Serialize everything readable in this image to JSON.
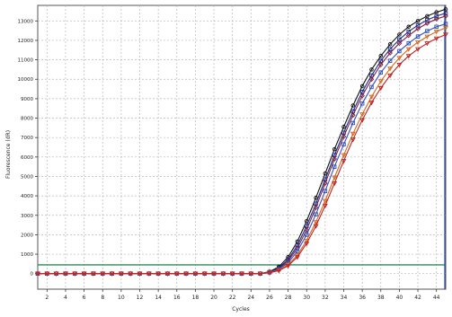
{
  "chart_data": {
    "type": "line",
    "title": "",
    "xlabel": "Cycles",
    "ylabel": "Fluorescence (dR)",
    "xlim": [
      1,
      45
    ],
    "ylim": [
      -800,
      13800
    ],
    "x_ticks": [
      2,
      4,
      6,
      8,
      10,
      12,
      14,
      16,
      18,
      20,
      22,
      24,
      26,
      28,
      30,
      32,
      34,
      36,
      38,
      40,
      42,
      44
    ],
    "y_ticks": [
      0,
      1000,
      2000,
      3000,
      4000,
      5000,
      6000,
      7000,
      8000,
      9000,
      10000,
      11000,
      12000,
      13000
    ],
    "grid": true,
    "threshold": {
      "value": 450,
      "color": "#2e8b57"
    },
    "series": [
      {
        "color": "#101010",
        "marker": "circle",
        "values": [
          0,
          0,
          0,
          0,
          0,
          0,
          0,
          0,
          0,
          0,
          0,
          0,
          0,
          0,
          0,
          0,
          0,
          0,
          0,
          0,
          0,
          0,
          0,
          0,
          0,
          100,
          350,
          850,
          1650,
          2700,
          3900,
          5150,
          6400,
          7550,
          8650,
          9650,
          10500,
          11200,
          11800,
          12300,
          12700,
          13000,
          13250,
          13450,
          13600
        ]
      },
      {
        "color": "#1a2a8a",
        "marker": "square",
        "values": [
          0,
          0,
          0,
          0,
          0,
          0,
          0,
          0,
          0,
          0,
          0,
          0,
          0,
          0,
          0,
          0,
          0,
          0,
          0,
          0,
          0,
          0,
          0,
          0,
          0,
          80,
          300,
          720,
          1450,
          2450,
          3600,
          4850,
          6100,
          7250,
          8350,
          9350,
          10200,
          10950,
          11550,
          12050,
          12450,
          12780,
          13050,
          13250,
          13400
        ]
      },
      {
        "color": "#7a2040",
        "marker": "diamond",
        "values": [
          0,
          0,
          0,
          0,
          0,
          0,
          0,
          0,
          0,
          0,
          0,
          0,
          0,
          0,
          0,
          0,
          0,
          0,
          0,
          0,
          0,
          0,
          0,
          0,
          0,
          70,
          250,
          650,
          1300,
          2250,
          3400,
          4650,
          5900,
          7050,
          8150,
          9150,
          10000,
          10750,
          11350,
          11850,
          12250,
          12600,
          12880,
          13100,
          13250
        ]
      },
      {
        "color": "#3050c0",
        "marker": "square",
        "values": [
          0,
          0,
          0,
          0,
          0,
          0,
          0,
          0,
          0,
          0,
          0,
          0,
          0,
          0,
          0,
          0,
          0,
          0,
          0,
          0,
          0,
          0,
          0,
          0,
          0,
          60,
          220,
          560,
          1150,
          2000,
          3050,
          4250,
          5500,
          6650,
          7750,
          8750,
          9600,
          10350,
          10950,
          11450,
          11850,
          12200,
          12480,
          12700,
          12850
        ]
      },
      {
        "color": "#d2691e",
        "marker": "triangle",
        "values": [
          0,
          0,
          0,
          0,
          0,
          0,
          0,
          0,
          0,
          0,
          0,
          0,
          0,
          0,
          0,
          0,
          0,
          0,
          0,
          0,
          0,
          0,
          0,
          0,
          0,
          50,
          180,
          460,
          950,
          1700,
          2650,
          3750,
          4950,
          6100,
          7200,
          8200,
          9100,
          9900,
          10550,
          11100,
          11550,
          11900,
          12200,
          12450,
          12650
        ]
      },
      {
        "color": "#c02020",
        "marker": "triangle",
        "values": [
          0,
          0,
          0,
          0,
          0,
          0,
          0,
          0,
          0,
          0,
          0,
          0,
          0,
          0,
          0,
          0,
          0,
          0,
          0,
          0,
          0,
          0,
          0,
          0,
          0,
          40,
          150,
          400,
          850,
          1550,
          2450,
          3500,
          4650,
          5800,
          6900,
          7900,
          8800,
          9550,
          10200,
          10750,
          11200,
          11550,
          11850,
          12100,
          12300
        ]
      }
    ],
    "legend": "none"
  }
}
